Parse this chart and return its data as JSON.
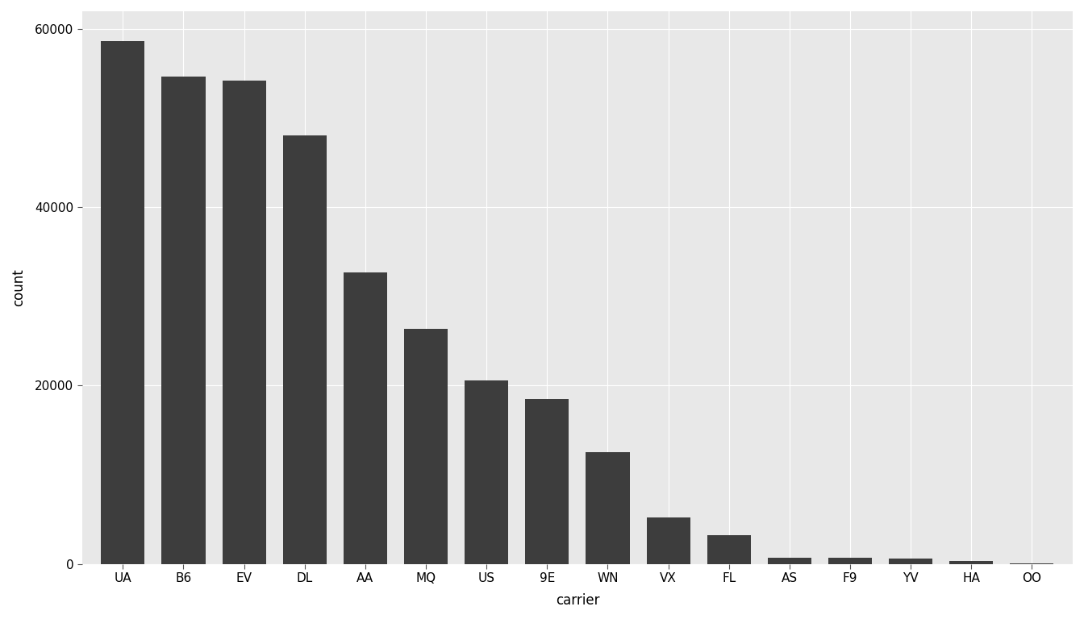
{
  "carriers": [
    "UA",
    "B6",
    "EV",
    "DL",
    "AA",
    "MQ",
    "US",
    "9E",
    "WN",
    "VX",
    "FL",
    "AS",
    "F9",
    "YV",
    "HA",
    "OO"
  ],
  "counts": [
    58665,
    54635,
    54173,
    48110,
    32729,
    26397,
    20536,
    18460,
    12522,
    5162,
    3260,
    714,
    685,
    601,
    342,
    32
  ],
  "bar_color": "#3d3d3d",
  "outer_background": "#ffffff",
  "panel_background": "#e8e8e8",
  "grid_color": "#ffffff",
  "xlabel": "carrier",
  "ylabel": "count",
  "ylim": [
    0,
    62000
  ],
  "yticks": [
    0,
    20000,
    40000,
    60000
  ],
  "ytick_labels": [
    "0",
    "20000",
    "40000",
    "60000"
  ],
  "axis_label_fontsize": 12,
  "tick_fontsize": 11,
  "bar_width": 0.72
}
